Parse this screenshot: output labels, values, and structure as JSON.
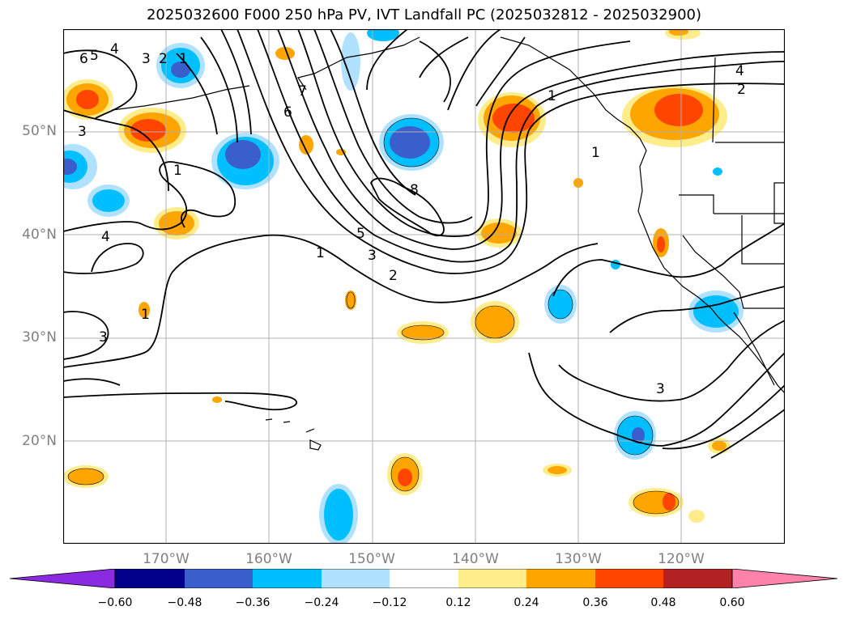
{
  "title": "2025032600 F000 250 hPa PV, IVT Landfall PC (2025032812 - 2025032900)",
  "map": {
    "lon_range": [
      -180,
      -110
    ],
    "lat_range": [
      10,
      60
    ],
    "lat_labels": [
      "50°N",
      "40°N",
      "30°N",
      "20°N"
    ],
    "lon_labels": [
      "170°W",
      "160°W",
      "150°W",
      "140°W",
      "130°W",
      "120°W"
    ]
  },
  "contour_labels": [
    "4",
    "6",
    "5",
    "3",
    "2",
    "1",
    "7",
    "6",
    "8",
    "5",
    "3",
    "2",
    "1",
    "1",
    "4",
    "2",
    "1",
    "3",
    "1",
    "4",
    "3",
    "3",
    "1"
  ],
  "colorbar": {
    "ticks": [
      "−0.60",
      "−0.48",
      "−0.36",
      "−0.24",
      "−0.12",
      "0.12",
      "0.24",
      "0.36",
      "0.48",
      "0.60"
    ],
    "colors": [
      "#8a2be2",
      "#00008b",
      "#3a5fcd",
      "#00bfff",
      "#b0e2ff",
      "#ffffff",
      "#ffec8b",
      "#ffa500",
      "#ff4500",
      "#b22222",
      "#ff82ab"
    ]
  }
}
